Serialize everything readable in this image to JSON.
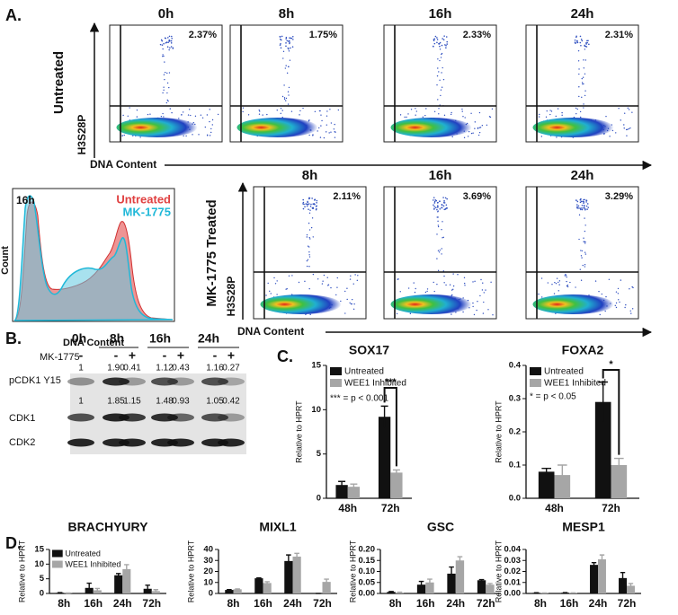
{
  "panel_a": {
    "label": "A.",
    "untreated": {
      "row_label": "Untreated",
      "y_axis": "H3S28P",
      "x_axis": "DNA Content",
      "plots": [
        {
          "time": "0h",
          "percent": "2.37%"
        },
        {
          "time": "8h",
          "percent": "1.75%"
        },
        {
          "time": "16h",
          "percent": "2.33%"
        },
        {
          "time": "24h",
          "percent": "2.31%"
        }
      ]
    },
    "treated": {
      "row_label": "MK-1775 Treated",
      "y_axis": "H3S28P",
      "x_axis": "DNA Content",
      "plots": [
        {
          "time": "8h",
          "percent": "2.11%"
        },
        {
          "time": "16h",
          "percent": "3.69%"
        },
        {
          "time": "24h",
          "percent": "3.29%"
        }
      ]
    },
    "histogram": {
      "time": "16h",
      "series": [
        "Untreated",
        "MK-1775"
      ],
      "y_axis": "Count",
      "x_axis": "DNA Content"
    }
  },
  "panel_b": {
    "label": "B.",
    "times": [
      "0h",
      "8h",
      "16h",
      "24h"
    ],
    "treatment_label": "MK-1775",
    "treatment": [
      "-",
      "-",
      "+",
      "-",
      "+",
      "-",
      "+"
    ],
    "rows": [
      {
        "label": "pCDK1 Y15",
        "quant": [
          "1",
          "1.90",
          "0.41",
          "1.12",
          "0.43",
          "1.16",
          "0.27"
        ]
      },
      {
        "label": "CDK1",
        "quant": [
          "1",
          "1.85",
          "1.15",
          "1.48",
          "0.93",
          "1.05",
          "0.42"
        ]
      },
      {
        "label": "CDK2"
      }
    ]
  },
  "panel_c": {
    "label": "C."
  },
  "panel_d": {
    "label": "D."
  },
  "chart_data": [
    {
      "type": "bar",
      "title": "SOX17",
      "y_label": "Relative to HPRT",
      "categories": [
        "48h",
        "72h"
      ],
      "series": [
        {
          "name": "Untreated",
          "color": "#111111",
          "values": [
            1.5,
            9.2
          ],
          "errors": [
            0.4,
            1.2
          ]
        },
        {
          "name": "WEE1 Inhibited",
          "color": "#a6a6a6",
          "values": [
            1.3,
            2.9
          ],
          "errors": [
            0.3,
            0.3
          ]
        }
      ],
      "ylim": [
        0,
        15
      ],
      "yticks": [
        0,
        5,
        10,
        15
      ],
      "significance": "***",
      "note": "*** = p < 0.001"
    },
    {
      "type": "bar",
      "title": "FOXA2",
      "y_label": "Relative to HPRT",
      "categories": [
        "48h",
        "72h"
      ],
      "series": [
        {
          "name": "Untreated",
          "color": "#111111",
          "values": [
            0.08,
            0.29
          ],
          "errors": [
            0.01,
            0.06
          ]
        },
        {
          "name": "WEE1 Inhibited",
          "color": "#a6a6a6",
          "values": [
            0.07,
            0.1
          ],
          "errors": [
            0.03,
            0.02
          ]
        }
      ],
      "ylim": [
        0,
        0.4
      ],
      "yticks": [
        {
          "value": 0,
          "label": "0.0"
        },
        0.1,
        0.2,
        0.3,
        0.4
      ],
      "significance": "*",
      "note": "* = p < 0.05"
    },
    {
      "type": "bar",
      "title": "BRACHYURY",
      "y_label": "Relative to HPRT",
      "categories": [
        "8h",
        "16h",
        "24h",
        "72h"
      ],
      "series": [
        {
          "name": "Untreated",
          "color": "#111111",
          "values": [
            0.2,
            1.9,
            6.2,
            1.6
          ],
          "errors": [
            0.1,
            1.6,
            0.6,
            1.2
          ]
        },
        {
          "name": "WEE1 Inhibited",
          "color": "#a6a6a6",
          "values": [
            0.1,
            1.1,
            8.3,
            0.8
          ],
          "errors": [
            0.05,
            0.6,
            1.5,
            0.5
          ]
        }
      ],
      "ylim": [
        0,
        15
      ],
      "yticks": [
        0,
        5,
        10,
        15
      ]
    },
    {
      "type": "bar",
      "title": "MIXL1",
      "y_label": "Relative to HPRT",
      "categories": [
        "8h",
        "16h",
        "24h",
        "72h"
      ],
      "series": [
        {
          "color": "#111111",
          "values": [
            3.2,
            13.8,
            29.5,
            0
          ],
          "errors": [
            0.3,
            0.3,
            5.5,
            0
          ]
        },
        {
          "color": "#a6a6a6",
          "values": [
            3.8,
            9.5,
            33.5,
            10.5
          ],
          "errors": [
            0.3,
            1.2,
            3,
            2.5
          ]
        }
      ],
      "ylim": [
        0,
        40
      ],
      "yticks": [
        0,
        10,
        20,
        30,
        40
      ]
    },
    {
      "type": "bar",
      "title": "GSC",
      "y_label": "Relative to HPRT",
      "categories": [
        "8h",
        "16h",
        "24h",
        "72h"
      ],
      "series": [
        {
          "color": "#111111",
          "values": [
            0.007,
            0.04,
            0.09,
            0.06
          ],
          "errors": [
            0.002,
            0.015,
            0.03,
            0.003
          ]
        },
        {
          "color": "#a6a6a6",
          "values": [
            0.004,
            0.05,
            0.15,
            0.04
          ],
          "errors": [
            0.002,
            0.015,
            0.017,
            0.005
          ]
        }
      ],
      "ylim": [
        0,
        0.2
      ],
      "yticks": [
        {
          "value": 0,
          "label": "0.00"
        },
        0.05,
        {
          "value": 0.1,
          "label": "0.10"
        },
        0.15,
        {
          "value": 0.2,
          "label": "0.20"
        }
      ]
    },
    {
      "type": "bar",
      "title": "MESP1",
      "y_label": "Relative to HPRT",
      "categories": [
        "8h",
        "16h",
        "24h",
        "72h"
      ],
      "series": [
        {
          "color": "#111111",
          "values": [
            0.0005,
            0.0006,
            0.026,
            0.014
          ],
          "errors": [
            0.0002,
            0.0002,
            0.002,
            0.005
          ]
        },
        {
          "color": "#a6a6a6",
          "values": [
            0.0004,
            0.0004,
            0.031,
            0.007
          ],
          "errors": [
            0.0001,
            0.0002,
            0.004,
            0.002
          ]
        }
      ],
      "ylim": [
        0,
        0.04
      ],
      "yticks": [
        {
          "value": 0,
          "label": "0.00"
        },
        0.01,
        0.02,
        0.03,
        0.04
      ]
    }
  ]
}
